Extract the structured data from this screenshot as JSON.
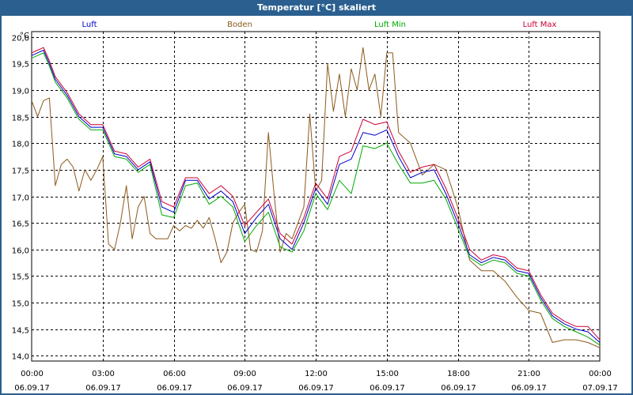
{
  "window": {
    "title": "Temperatur [°C] skaliert"
  },
  "colors": {
    "frame": "#2a5f8f",
    "luft": "#0000cc",
    "boden": "#8b5a1a",
    "luft_min": "#00aa00",
    "luft_max": "#cc0033",
    "grid": "#000000"
  },
  "chart_data": {
    "type": "line",
    "title": "Temperatur [°C] skaliert",
    "ylabel": "°C",
    "ylim": [
      13.9,
      20.1
    ],
    "yticks": [
      "14,0",
      "14,5",
      "15,0",
      "15,5",
      "16,0",
      "16,5",
      "17,0",
      "17,5",
      "18,0",
      "18,5",
      "19,0",
      "19,5",
      "20,0"
    ],
    "ytick_values": [
      14.0,
      14.5,
      15.0,
      15.5,
      16.0,
      16.5,
      17.0,
      17.5,
      18.0,
      18.5,
      19.0,
      19.5,
      20.0
    ],
    "xlim": [
      0,
      24
    ],
    "xticks": [
      {
        "time": "00:00",
        "date": "06.09.17",
        "h": 0
      },
      {
        "time": "03:00",
        "date": "06.09.17",
        "h": 3
      },
      {
        "time": "06:00",
        "date": "06.09.17",
        "h": 6
      },
      {
        "time": "09:00",
        "date": "06.09.17",
        "h": 9
      },
      {
        "time": "12:00",
        "date": "06.09.17",
        "h": 12
      },
      {
        "time": "15:00",
        "date": "06.09.17",
        "h": 15
      },
      {
        "time": "18:00",
        "date": "06.09.17",
        "h": 18
      },
      {
        "time": "21:00",
        "date": "06.09.17",
        "h": 21
      },
      {
        "time": "00:00",
        "date": "07.09.17",
        "h": 24
      }
    ],
    "grid": true,
    "legend_position": "top",
    "series": [
      {
        "name": "Luft",
        "color": "#0000cc",
        "x": [
          0,
          0.25,
          0.5,
          0.75,
          1,
          1.5,
          2,
          2.5,
          3,
          3.5,
          4,
          4.5,
          5,
          5.5,
          6,
          6.5,
          7,
          7.5,
          8,
          8.5,
          9,
          9.5,
          10,
          10.5,
          11,
          11.5,
          12,
          12.5,
          13,
          13.5,
          14,
          14.5,
          15,
          15.5,
          16,
          16.5,
          17,
          17.5,
          18,
          18.5,
          19,
          19.5,
          20,
          20.5,
          21,
          21.5,
          22,
          22.5,
          23,
          23.5,
          24
        ],
        "y": [
          19.65,
          19.7,
          19.75,
          19.5,
          19.2,
          18.9,
          18.5,
          18.3,
          18.3,
          17.8,
          17.75,
          17.5,
          17.65,
          16.8,
          16.7,
          17.3,
          17.3,
          16.95,
          17.1,
          16.9,
          16.3,
          16.6,
          16.85,
          16.2,
          16.0,
          16.5,
          17.15,
          16.85,
          17.6,
          17.7,
          18.2,
          18.15,
          18.25,
          17.75,
          17.35,
          17.45,
          17.5,
          17.05,
          16.5,
          15.9,
          15.75,
          15.85,
          15.8,
          15.6,
          15.55,
          15.1,
          14.75,
          14.6,
          14.5,
          14.45,
          14.25
        ]
      },
      {
        "name": "Boden",
        "color": "#8b5a1a",
        "x": [
          0,
          0.25,
          0.5,
          0.75,
          1,
          1.25,
          1.5,
          1.75,
          2,
          2.25,
          2.5,
          2.75,
          3,
          3.25,
          3.5,
          3.75,
          4,
          4.25,
          4.5,
          4.75,
          5,
          5.25,
          5.5,
          5.75,
          6,
          6.25,
          6.5,
          6.75,
          7,
          7.25,
          7.5,
          7.75,
          8,
          8.25,
          8.5,
          8.75,
          9,
          9.25,
          9.5,
          9.75,
          10,
          10.25,
          10.5,
          10.75,
          11,
          11.25,
          11.5,
          11.75,
          12,
          12.25,
          12.5,
          12.75,
          13,
          13.25,
          13.5,
          13.75,
          14,
          14.25,
          14.5,
          14.75,
          15,
          15.25,
          15.5,
          15.75,
          16,
          16.5,
          17,
          17.5,
          18,
          18.5,
          19,
          19.5,
          20,
          20.5,
          21,
          21.5,
          22,
          22.5,
          23,
          23.5,
          24
        ],
        "y": [
          18.8,
          18.5,
          18.8,
          18.85,
          17.2,
          17.6,
          17.7,
          17.55,
          17.1,
          17.5,
          17.3,
          17.5,
          17.75,
          16.1,
          16.0,
          16.5,
          17.2,
          16.2,
          16.8,
          17.0,
          16.3,
          16.2,
          16.2,
          16.2,
          16.45,
          16.35,
          16.45,
          16.4,
          16.55,
          16.4,
          16.6,
          16.2,
          15.75,
          15.95,
          16.5,
          16.7,
          16.85,
          16.0,
          15.95,
          16.35,
          18.2,
          17.0,
          15.95,
          16.3,
          16.2,
          16.5,
          16.8,
          18.55,
          17.1,
          17.3,
          19.5,
          18.6,
          19.3,
          18.5,
          19.4,
          19.0,
          19.8,
          19.0,
          19.3,
          18.5,
          19.7,
          19.7,
          18.2,
          18.1,
          18.0,
          17.4,
          17.6,
          17.5,
          16.8,
          15.8,
          15.6,
          15.6,
          15.4,
          15.1,
          14.85,
          14.8,
          14.25,
          14.3,
          14.3,
          14.25,
          14.15
        ]
      },
      {
        "name": "Luft Min",
        "color": "#00aa00",
        "x": [
          0,
          0.25,
          0.5,
          0.75,
          1,
          1.5,
          2,
          2.5,
          3,
          3.5,
          4,
          4.5,
          5,
          5.5,
          6,
          6.5,
          7,
          7.5,
          8,
          8.5,
          9,
          9.5,
          10,
          10.5,
          11,
          11.5,
          12,
          12.5,
          13,
          13.5,
          14,
          14.5,
          15,
          15.5,
          16,
          16.5,
          17,
          17.5,
          18,
          18.5,
          19,
          19.5,
          20,
          20.5,
          21,
          21.5,
          22,
          22.5,
          23,
          23.5,
          24
        ],
        "y": [
          19.6,
          19.65,
          19.7,
          19.45,
          19.15,
          18.85,
          18.45,
          18.25,
          18.25,
          17.75,
          17.7,
          17.45,
          17.6,
          16.65,
          16.6,
          17.2,
          17.25,
          16.85,
          17.0,
          16.8,
          16.15,
          16.45,
          16.7,
          16.05,
          15.95,
          16.35,
          17.05,
          16.75,
          17.3,
          17.05,
          17.95,
          17.9,
          18.0,
          17.6,
          17.25,
          17.25,
          17.3,
          16.95,
          16.4,
          15.85,
          15.7,
          15.8,
          15.75,
          15.55,
          15.5,
          15.05,
          14.7,
          14.55,
          14.45,
          14.35,
          14.2
        ]
      },
      {
        "name": "Luft Max",
        "color": "#cc0033",
        "x": [
          0,
          0.25,
          0.5,
          0.75,
          1,
          1.5,
          2,
          2.5,
          3,
          3.5,
          4,
          4.5,
          5,
          5.5,
          6,
          6.5,
          7,
          7.5,
          8,
          8.5,
          9,
          9.5,
          10,
          10.5,
          11,
          11.5,
          12,
          12.5,
          13,
          13.5,
          14,
          14.5,
          15,
          15.5,
          16,
          16.5,
          17,
          17.5,
          18,
          18.5,
          19,
          19.5,
          20,
          20.5,
          21,
          21.5,
          22,
          22.5,
          23,
          23.5,
          24
        ],
        "y": [
          19.7,
          19.75,
          19.8,
          19.55,
          19.25,
          18.95,
          18.55,
          18.35,
          18.35,
          17.85,
          17.8,
          17.55,
          17.7,
          16.9,
          16.8,
          17.35,
          17.35,
          17.05,
          17.2,
          17.0,
          16.45,
          16.7,
          16.95,
          16.3,
          16.1,
          16.6,
          17.25,
          16.95,
          17.75,
          17.85,
          18.45,
          18.35,
          18.4,
          17.85,
          17.45,
          17.55,
          17.6,
          17.15,
          16.6,
          16.0,
          15.8,
          15.9,
          15.85,
          15.65,
          15.6,
          15.15,
          14.8,
          14.65,
          14.55,
          14.55,
          14.3
        ]
      }
    ]
  }
}
